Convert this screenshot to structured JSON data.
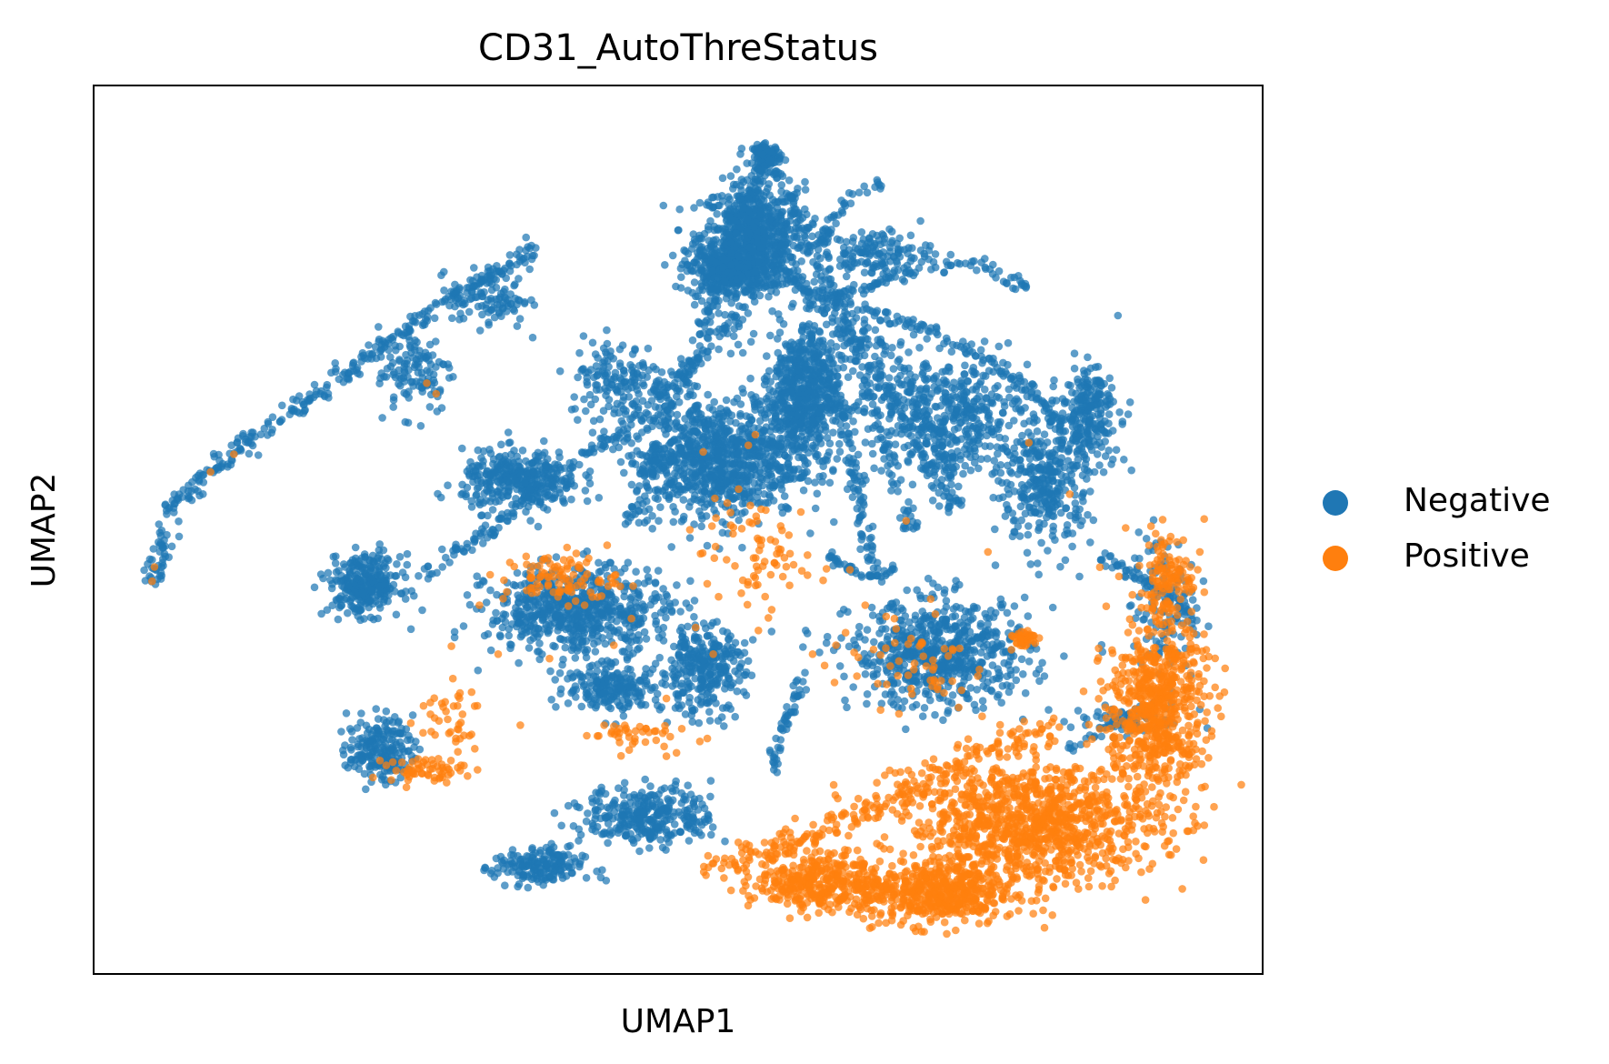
{
  "chart_data": {
    "type": "scatter",
    "title": "CD31_AutoThreStatus",
    "xlabel": "UMAP1",
    "ylabel": "UMAP2",
    "xlim": [
      0,
      100
    ],
    "ylim": [
      0,
      100
    ],
    "grid": false,
    "xticks": false,
    "yticks": false,
    "legend": {
      "placement": "right"
    },
    "series": [
      {
        "name": "Negative",
        "color": "#1f77b4",
        "clusters": [
          {
            "cx": 56.4,
            "cy": 83.0,
            "rx": 4.0,
            "ry": 5.5,
            "n": 700
          },
          {
            "cx": 54.3,
            "cy": 79.2,
            "rx": 3.3,
            "ry": 2.8,
            "n": 350
          },
          {
            "cx": 57.6,
            "cy": 92.2,
            "rx": 1.1,
            "ry": 1.0,
            "n": 90
          },
          {
            "cx": 60.5,
            "cy": 65.0,
            "rx": 3.0,
            "ry": 7.0,
            "n": 600
          },
          {
            "cx": 53.2,
            "cy": 58.0,
            "rx": 6.5,
            "ry": 6.0,
            "n": 900
          },
          {
            "cx": 36.5,
            "cy": 55.5,
            "rx": 4.5,
            "ry": 3.0,
            "n": 350
          },
          {
            "cx": 23.2,
            "cy": 43.8,
            "rx": 2.8,
            "ry": 3.0,
            "n": 300
          },
          {
            "cx": 41.5,
            "cy": 40.8,
            "rx": 7.0,
            "ry": 4.5,
            "n": 650
          },
          {
            "cx": 52.0,
            "cy": 34.3,
            "rx": 3.3,
            "ry": 4.5,
            "n": 300
          },
          {
            "cx": 44.5,
            "cy": 32.2,
            "rx": 3.8,
            "ry": 2.2,
            "n": 200
          },
          {
            "cx": 72.5,
            "cy": 36.0,
            "rx": 7.0,
            "ry": 5.5,
            "n": 650
          },
          {
            "cx": 73.0,
            "cy": 63.0,
            "rx": 6.5,
            "ry": 6.0,
            "n": 450
          },
          {
            "cx": 81.5,
            "cy": 55.5,
            "rx": 3.5,
            "ry": 7.0,
            "n": 350
          },
          {
            "cx": 85.2,
            "cy": 63.5,
            "rx": 2.3,
            "ry": 4.5,
            "n": 200
          },
          {
            "cx": 24.5,
            "cy": 25.3,
            "rx": 2.5,
            "ry": 3.2,
            "n": 200
          },
          {
            "cx": 47.5,
            "cy": 17.8,
            "rx": 5.0,
            "ry": 3.0,
            "n": 320
          },
          {
            "cx": 38.0,
            "cy": 12.0,
            "rx": 3.5,
            "ry": 2.0,
            "n": 180
          },
          {
            "cx": 34.0,
            "cy": 76.0,
            "rx": 3.0,
            "ry": 3.0,
            "n": 100
          },
          {
            "cx": 27.5,
            "cy": 68.0,
            "rx": 3.0,
            "ry": 4.5,
            "n": 120
          },
          {
            "cx": 45.0,
            "cy": 67.0,
            "rx": 4.0,
            "ry": 4.0,
            "n": 150
          },
          {
            "cx": 66.8,
            "cy": 81.0,
            "rx": 4.5,
            "ry": 2.5,
            "n": 150
          },
          {
            "cx": 91.5,
            "cy": 41.0,
            "rx": 2.5,
            "ry": 8.0,
            "n": 120
          },
          {
            "cx": 88.0,
            "cy": 28.5,
            "rx": 4.0,
            "ry": 1.5,
            "n": 60
          }
        ],
        "paths": [
          {
            "points": [
              [
                5,
                44
              ],
              [
                7,
                53
              ],
              [
                13,
                60
              ],
              [
                20,
                66
              ],
              [
                27,
                73
              ],
              [
                33,
                78
              ],
              [
                38,
                82
              ]
            ],
            "n": 320,
            "spread": 0.8
          },
          {
            "points": [
              [
                57.6,
                92
              ],
              [
                56,
                86
              ],
              [
                54,
                80
              ],
              [
                52,
                73
              ],
              [
                50,
                66
              ],
              [
                48,
                58
              ],
              [
                46,
                50
              ]
            ],
            "n": 200,
            "spread": 0.7
          },
          {
            "points": [
              [
                57.6,
                92
              ],
              [
                61,
                84
              ],
              [
                64,
                74
              ],
              [
                66,
                66
              ],
              [
                68,
                58
              ],
              [
                70,
                50
              ]
            ],
            "n": 180,
            "spread": 0.7
          },
          {
            "points": [
              [
                58,
                80
              ],
              [
                64,
                73
              ],
              [
                68,
                66
              ],
              [
                71,
                59
              ],
              [
                73,
                52
              ]
            ],
            "n": 150,
            "spread": 0.7
          },
          {
            "points": [
              [
                55,
                74
              ],
              [
                51,
                68
              ],
              [
                46,
                62
              ],
              [
                40,
                56
              ],
              [
                34,
                50
              ],
              [
                28,
                45
              ]
            ],
            "n": 200,
            "spread": 0.8
          },
          {
            "points": [
              [
                61,
                74
              ],
              [
                63,
                66
              ],
              [
                65,
                58
              ],
              [
                66,
                50
              ],
              [
                67,
                44
              ]
            ],
            "n": 140,
            "spread": 0.6
          },
          {
            "points": [
              [
                59,
                79
              ],
              [
                63,
                76
              ],
              [
                68,
                74
              ],
              [
                74,
                71
              ],
              [
                80,
                66
              ],
              [
                84,
                60
              ]
            ],
            "n": 150,
            "spread": 0.6
          },
          {
            "points": [
              [
                63,
                76
              ],
              [
                70,
                79
              ],
              [
                76,
                80
              ],
              [
                80,
                77
              ]
            ],
            "n": 80,
            "spread": 0.5
          },
          {
            "points": [
              [
                62,
                82
              ],
              [
                65,
                88
              ],
              [
                67.5,
                89
              ]
            ],
            "n": 40,
            "spread": 0.5
          },
          {
            "points": [
              [
                63,
                47
              ],
              [
                66,
                44.5
              ],
              [
                68.5,
                45.5
              ]
            ],
            "n": 40,
            "spread": 0.4
          },
          {
            "points": [
              [
                61,
                34
              ],
              [
                59,
                28
              ],
              [
                58,
                23
              ]
            ],
            "n": 50,
            "spread": 0.5
          },
          {
            "points": [
              [
                65,
                75
              ],
              [
                69,
                68
              ],
              [
                72,
                61
              ],
              [
                74,
                52
              ]
            ],
            "n": 90,
            "spread": 0.6
          },
          {
            "points": [
              [
                86.5,
                47
              ],
              [
                89,
                45
              ],
              [
                91.5,
                43
              ],
              [
                94,
                40
              ]
            ],
            "n": 60,
            "spread": 0.6
          },
          {
            "points": [
              [
                83,
                25
              ],
              [
                87,
                28
              ],
              [
                92,
                31
              ]
            ],
            "n": 40,
            "spread": 0.5
          }
        ]
      },
      {
        "name": "Positive",
        "color": "#ff7f0e",
        "clusters": [
          {
            "cx": 80.0,
            "cy": 17.0,
            "rx": 10.0,
            "ry": 6.5,
            "n": 1100
          },
          {
            "cx": 91.0,
            "cy": 30.0,
            "rx": 3.8,
            "ry": 9.0,
            "n": 650
          },
          {
            "cx": 62.0,
            "cy": 10.5,
            "rx": 5.0,
            "ry": 3.0,
            "n": 350
          },
          {
            "cx": 72.0,
            "cy": 9.0,
            "rx": 6.0,
            "ry": 3.2,
            "n": 500
          },
          {
            "cx": 92.0,
            "cy": 45.0,
            "rx": 2.0,
            "ry": 4.5,
            "n": 110
          },
          {
            "cx": 79.5,
            "cy": 37.8,
            "rx": 1.2,
            "ry": 1.0,
            "n": 40
          },
          {
            "cx": 28.5,
            "cy": 23.0,
            "rx": 3.0,
            "ry": 1.2,
            "n": 60
          },
          {
            "cx": 40.0,
            "cy": 44.5,
            "rx": 4.5,
            "ry": 2.5,
            "n": 90
          },
          {
            "cx": 56.5,
            "cy": 47.0,
            "rx": 4.0,
            "ry": 6.0,
            "n": 70
          },
          {
            "cx": 45.5,
            "cy": 27.0,
            "rx": 3.5,
            "ry": 1.5,
            "n": 40
          },
          {
            "cx": 70.0,
            "cy": 35.0,
            "rx": 6.0,
            "ry": 4.5,
            "n": 50
          },
          {
            "cx": 30.0,
            "cy": 29.0,
            "rx": 3.0,
            "ry": 4.0,
            "n": 40
          }
        ],
        "paths": [
          {
            "points": [
              [
                52,
                12
              ],
              [
                58,
                14
              ],
              [
                64,
                17
              ],
              [
                70,
                21
              ],
              [
                76,
                25
              ],
              [
                82,
                28
              ]
            ],
            "n": 200,
            "spread": 1.2
          }
        ],
        "scattered": [
          [
            5.2,
            45.8
          ],
          [
            5.0,
            44.2
          ],
          [
            10.0,
            56.5
          ],
          [
            12.0,
            58.5
          ],
          [
            28.5,
            66.5
          ],
          [
            29.3,
            65.3
          ],
          [
            56.0,
            59.5
          ],
          [
            56.6,
            60.7
          ],
          [
            51.0,
            50.0
          ],
          [
            54.5,
            50.5
          ],
          [
            60.5,
            52.0
          ],
          [
            58.0,
            41.0
          ],
          [
            64.7,
            45.5
          ],
          [
            69.5,
            51.0
          ],
          [
            71.6,
            42.2
          ],
          [
            76.5,
            47.5
          ],
          [
            80.0,
            59.8
          ],
          [
            83.5,
            54.0
          ],
          [
            62.4,
            44.3
          ],
          [
            57.5,
            52.2
          ],
          [
            70.0,
            31.5
          ],
          [
            72.5,
            33.0
          ],
          [
            74.0,
            30.0
          ],
          [
            76.0,
            29.0
          ],
          [
            49.0,
            31.0
          ],
          [
            51.5,
            39.0
          ],
          [
            53.0,
            36.0
          ],
          [
            44.5,
            37.0
          ],
          [
            42.0,
            41.5
          ],
          [
            34.6,
            36.0
          ],
          [
            39.0,
            35.5
          ],
          [
            33.0,
            41.5
          ],
          [
            46.0,
            40.0
          ],
          [
            40.5,
            48.0
          ],
          [
            37.0,
            47.0
          ],
          [
            49.0,
            24.5
          ],
          [
            36.5,
            28.0
          ],
          [
            58.5,
            13.5
          ],
          [
            60.0,
            17.5
          ],
          [
            65.0,
            12.2
          ],
          [
            59.2,
            16.3
          ],
          [
            52.5,
            26.5
          ],
          [
            47.5,
            27.2
          ],
          [
            66.0,
            41.5
          ],
          [
            68.5,
            40.0
          ],
          [
            72.0,
            40.5
          ],
          [
            63.5,
            37.0
          ],
          [
            61.5,
            36.0
          ]
        ]
      }
    ]
  }
}
